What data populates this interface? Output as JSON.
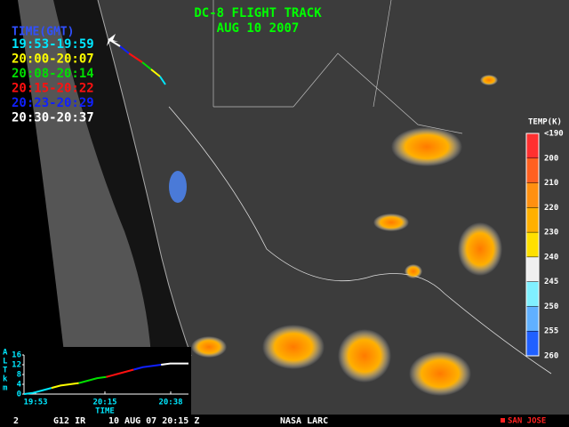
{
  "header": {
    "title": "DC-8 FLIGHT TRACK",
    "date": "AUG 10 2007",
    "color": "#00ff00"
  },
  "legend": {
    "title": "TIME(GMT)",
    "title_color": "#3050ff",
    "items": [
      {
        "label": "19:53-19:59",
        "color": "#00e8ff"
      },
      {
        "label": "20:00-20:07",
        "color": "#ffff00"
      },
      {
        "label": "20:08-20:14",
        "color": "#00e000"
      },
      {
        "label": "20:15-20:22",
        "color": "#ff1010"
      },
      {
        "label": "20:23-20:29",
        "color": "#1020ff"
      },
      {
        "label": "20:30-20:37",
        "color": "#ffffff"
      }
    ]
  },
  "colorbar": {
    "title": "TEMP(K)",
    "levels": [
      {
        "label": "<190",
        "color": "#ffd0e0"
      },
      {
        "label": "200",
        "color": "#ff3030"
      },
      {
        "label": "210",
        "color": "#ff6020"
      },
      {
        "label": "220",
        "color": "#ff9010"
      },
      {
        "label": "230",
        "color": "#ffb000"
      },
      {
        "label": "240",
        "color": "#ffe000"
      },
      {
        "label": "245",
        "color": "#f0f0f0"
      },
      {
        "label": "250",
        "color": "#80f0ff"
      },
      {
        "label": "255",
        "color": "#60b0ff"
      },
      {
        "label": "260",
        "color": "#2060ff"
      }
    ]
  },
  "profile": {
    "axis_label": [
      "A",
      "L",
      "T",
      "k",
      "m"
    ],
    "x_label": "TIME",
    "ylim": [
      0,
      16
    ],
    "yticks": [
      0,
      4,
      8,
      12,
      16
    ],
    "xticks": [
      "19:53",
      "20:15",
      "20:38"
    ],
    "segments": [
      {
        "color": "#00e8ff",
        "values": [
          0,
          0.5,
          1.5,
          2.5
        ]
      },
      {
        "color": "#ffff00",
        "values": [
          2.5,
          3.5,
          4,
          4.5
        ]
      },
      {
        "color": "#00e000",
        "values": [
          4.5,
          5.5,
          6.5,
          7
        ]
      },
      {
        "color": "#ff1010",
        "values": [
          7,
          8,
          9,
          10
        ]
      },
      {
        "color": "#1020ff",
        "values": [
          10,
          11,
          11.5,
          12
        ]
      },
      {
        "color": "#ffffff",
        "values": [
          12,
          12.5,
          12.5,
          12.5
        ]
      }
    ]
  },
  "footer": {
    "channel": "2",
    "sensor": "G12 IR",
    "datetime": "10 AUG 07 20:15 Z",
    "source": "NASA LARC",
    "marker": "SAN JOSE",
    "marker_color": "#ff2020"
  }
}
